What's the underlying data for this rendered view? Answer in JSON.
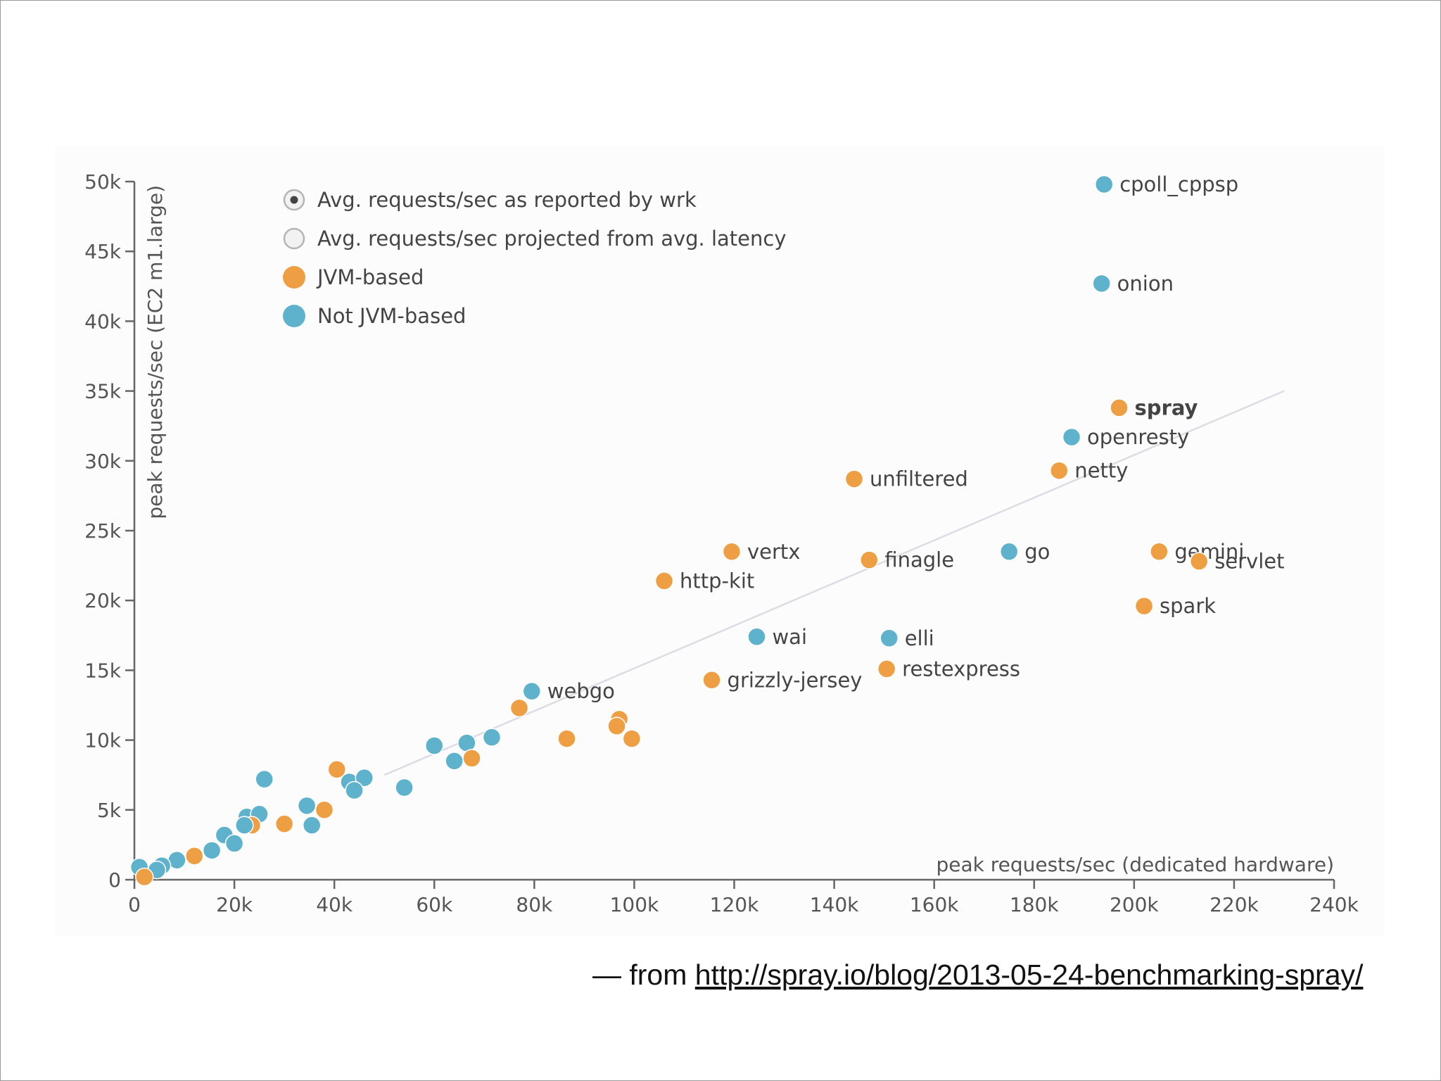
{
  "chart_data": {
    "type": "scatter",
    "xlabel": "peak requests/sec (dedicated hardware)",
    "ylabel": "peak requests/sec (EC2 m1.large)",
    "xlim": [
      0,
      240000
    ],
    "ylim": [
      0,
      50000
    ],
    "x_ticks": [
      "0",
      "20k",
      "40k",
      "60k",
      "80k",
      "100k",
      "120k",
      "140k",
      "160k",
      "180k",
      "200k",
      "220k",
      "240k"
    ],
    "y_ticks": [
      "0",
      "5k",
      "10k",
      "15k",
      "20k",
      "25k",
      "30k",
      "35k",
      "40k",
      "45k",
      "50k"
    ],
    "legend": {
      "radio_options": [
        {
          "label": "Avg. requests/sec as reported by wrk",
          "selected": true
        },
        {
          "label": "Avg. requests/sec projected from avg. latency",
          "selected": false
        }
      ],
      "series": [
        {
          "name": "JVM-based",
          "color": "#ef9f43"
        },
        {
          "name": "Not JVM-based",
          "color": "#5fb2cc"
        }
      ]
    },
    "trend_line": {
      "from": [
        50000,
        7500
      ],
      "to": [
        230000,
        35000
      ],
      "color": "#dcdce4"
    },
    "labeled_points": [
      {
        "label": "cpoll_cppsp",
        "x": 194000,
        "y": 49800,
        "series": "Not JVM-based",
        "bold": false
      },
      {
        "label": "onion",
        "x": 193500,
        "y": 42700,
        "series": "Not JVM-based",
        "bold": false
      },
      {
        "label": "spray",
        "x": 197000,
        "y": 33800,
        "series": "JVM-based",
        "bold": true
      },
      {
        "label": "openresty",
        "x": 187500,
        "y": 31700,
        "series": "Not JVM-based",
        "bold": false
      },
      {
        "label": "netty",
        "x": 185000,
        "y": 29300,
        "series": "JVM-based",
        "bold": false
      },
      {
        "label": "unfiltered",
        "x": 144000,
        "y": 28700,
        "series": "JVM-based",
        "bold": false
      },
      {
        "label": "vertx",
        "x": 119500,
        "y": 23500,
        "series": "JVM-based",
        "bold": false
      },
      {
        "label": "finagle",
        "x": 147000,
        "y": 22900,
        "series": "JVM-based",
        "bold": false
      },
      {
        "label": "go",
        "x": 175000,
        "y": 23500,
        "series": "Not JVM-based",
        "bold": false
      },
      {
        "label": "gemini",
        "x": 205000,
        "y": 23500,
        "series": "JVM-based",
        "bold": false
      },
      {
        "label": "servlet",
        "x": 213000,
        "y": 22800,
        "series": "JVM-based",
        "bold": false
      },
      {
        "label": "http-kit",
        "x": 106000,
        "y": 21400,
        "series": "JVM-based",
        "bold": false
      },
      {
        "label": "spark",
        "x": 202000,
        "y": 19600,
        "series": "JVM-based",
        "bold": false
      },
      {
        "label": "wai",
        "x": 124500,
        "y": 17400,
        "series": "Not JVM-based",
        "bold": false
      },
      {
        "label": "elli",
        "x": 151000,
        "y": 17300,
        "series": "Not JVM-based",
        "bold": false
      },
      {
        "label": "restexpress",
        "x": 150500,
        "y": 15100,
        "series": "JVM-based",
        "bold": false
      },
      {
        "label": "grizzly-jersey",
        "x": 115500,
        "y": 14300,
        "series": "JVM-based",
        "bold": false
      },
      {
        "label": "webgo",
        "x": 79500,
        "y": 13500,
        "series": "Not JVM-based",
        "bold": false
      }
    ],
    "unlabeled_points": [
      {
        "x": 77000,
        "y": 12300,
        "series": "JVM-based"
      },
      {
        "x": 97000,
        "y": 11500,
        "series": "JVM-based"
      },
      {
        "x": 96500,
        "y": 11000,
        "series": "JVM-based"
      },
      {
        "x": 99500,
        "y": 10100,
        "series": "JVM-based"
      },
      {
        "x": 86500,
        "y": 10100,
        "series": "JVM-based"
      },
      {
        "x": 71500,
        "y": 10200,
        "series": "Not JVM-based"
      },
      {
        "x": 66500,
        "y": 9800,
        "series": "Not JVM-based"
      },
      {
        "x": 60000,
        "y": 9600,
        "series": "Not JVM-based"
      },
      {
        "x": 64000,
        "y": 8500,
        "series": "Not JVM-based"
      },
      {
        "x": 67500,
        "y": 8700,
        "series": "JVM-based"
      },
      {
        "x": 54000,
        "y": 6600,
        "series": "Not JVM-based"
      },
      {
        "x": 40500,
        "y": 7900,
        "series": "JVM-based"
      },
      {
        "x": 43000,
        "y": 7000,
        "series": "Not JVM-based"
      },
      {
        "x": 46000,
        "y": 7300,
        "series": "Not JVM-based"
      },
      {
        "x": 44000,
        "y": 6400,
        "series": "Not JVM-based"
      },
      {
        "x": 26000,
        "y": 7200,
        "series": "Not JVM-based"
      },
      {
        "x": 34500,
        "y": 5300,
        "series": "Not JVM-based"
      },
      {
        "x": 38000,
        "y": 5000,
        "series": "JVM-based"
      },
      {
        "x": 35500,
        "y": 3900,
        "series": "Not JVM-based"
      },
      {
        "x": 30000,
        "y": 4000,
        "series": "JVM-based"
      },
      {
        "x": 22500,
        "y": 4500,
        "series": "Not JVM-based"
      },
      {
        "x": 25000,
        "y": 4700,
        "series": "Not JVM-based"
      },
      {
        "x": 23500,
        "y": 3900,
        "series": "JVM-based"
      },
      {
        "x": 22000,
        "y": 3900,
        "series": "Not JVM-based"
      },
      {
        "x": 18000,
        "y": 3200,
        "series": "Not JVM-based"
      },
      {
        "x": 20000,
        "y": 2600,
        "series": "Not JVM-based"
      },
      {
        "x": 15500,
        "y": 2100,
        "series": "Not JVM-based"
      },
      {
        "x": 12000,
        "y": 1700,
        "series": "JVM-based"
      },
      {
        "x": 8500,
        "y": 1400,
        "series": "Not JVM-based"
      },
      {
        "x": 5500,
        "y": 1000,
        "series": "Not JVM-based"
      },
      {
        "x": 4500,
        "y": 700,
        "series": "Not JVM-based"
      },
      {
        "x": 1000,
        "y": 900,
        "series": "Not JVM-based"
      },
      {
        "x": 2000,
        "y": 200,
        "series": "JVM-based"
      }
    ]
  },
  "caption": {
    "prefix": "— from ",
    "link": "http://spray.io/blog/2013-05-24-benchmarking-spray/"
  }
}
